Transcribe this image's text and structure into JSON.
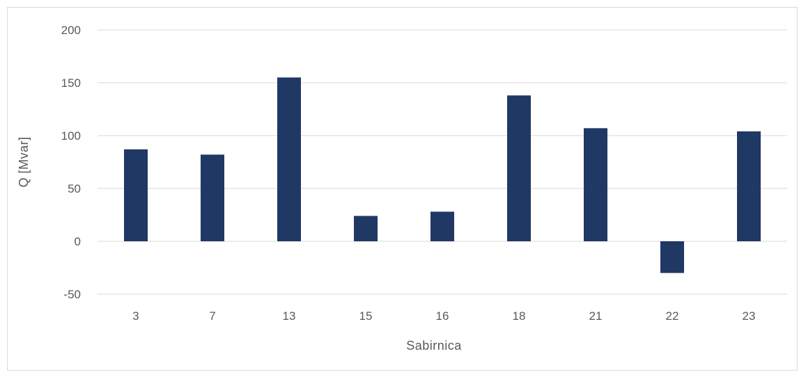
{
  "chart_data": {
    "type": "bar",
    "title": "",
    "xlabel": "Sabirnica",
    "ylabel": "Q [Mvar]",
    "categories": [
      "3",
      "7",
      "13",
      "15",
      "16",
      "18",
      "21",
      "22",
      "23"
    ],
    "values": [
      87,
      82,
      155,
      24,
      28,
      138,
      107,
      -30,
      104
    ],
    "ylim": [
      -50,
      200
    ],
    "yticks": [
      -50,
      0,
      50,
      100,
      150,
      200
    ],
    "grid": true,
    "legend": "none",
    "bar_color": "#203864",
    "grid_color": "#d9d9d9"
  }
}
